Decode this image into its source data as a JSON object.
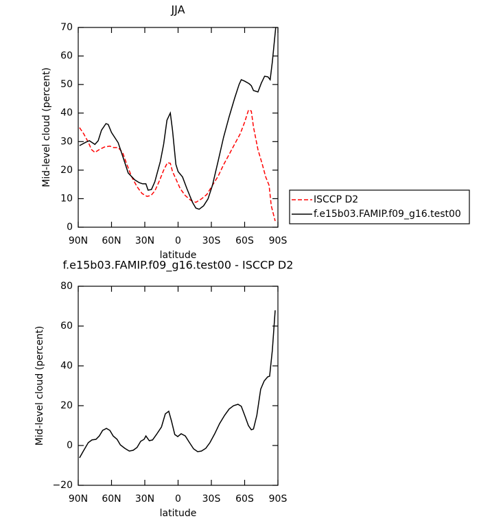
{
  "chart_data": [
    {
      "type": "line",
      "title": "JJA",
      "xlabel": "latitude",
      "ylabel": "Mid-level cloud (percent)",
      "xlim": [
        90,
        -90
      ],
      "ylim": [
        0,
        70
      ],
      "xticks": [
        {
          "value": 90,
          "label": "90N"
        },
        {
          "value": 60,
          "label": "60N"
        },
        {
          "value": 30,
          "label": "30N"
        },
        0,
        {
          "value": -30,
          "label": "30S"
        },
        {
          "value": -60,
          "label": "60S"
        },
        {
          "value": -90,
          "label": "90S"
        }
      ],
      "yticks": [
        0,
        10,
        20,
        30,
        40,
        50,
        60,
        70
      ],
      "legend": "right",
      "series": [
        {
          "name": "ISCCP D2",
          "color": "#ff0000",
          "line_style": "dashed",
          "x": [
            88.8,
            85,
            81,
            78,
            75,
            71,
            66.5,
            61.5,
            58,
            54,
            50,
            47,
            42,
            37,
            32.5,
            28,
            24.5,
            21,
            17,
            13,
            9.6,
            7,
            5,
            1.6,
            -2,
            -6.5,
            -11.5,
            -16,
            -21,
            -26,
            -31,
            -36,
            -41,
            -46,
            -51,
            -56,
            -60,
            -63.5,
            -66,
            -68,
            -72,
            -76,
            -79,
            -82,
            -84,
            -87.5
          ],
          "values": [
            34.9,
            32.7,
            29.8,
            27.2,
            26.2,
            27.2,
            28.1,
            28.4,
            27.9,
            27.9,
            26.2,
            22.9,
            17.8,
            14.2,
            11.8,
            10.8,
            11.1,
            12.7,
            16.1,
            20,
            22.6,
            22.4,
            19.5,
            16.6,
            13.5,
            11.1,
            9.4,
            8.7,
            9.9,
            11.5,
            14.7,
            17.8,
            21.9,
            25.5,
            29.1,
            32.7,
            36.8,
            41.1,
            40.7,
            35.1,
            27.2,
            21.9,
            17.6,
            14.7,
            7.5,
            2.2
          ]
        },
        {
          "name": "f.e15b03.FAMIP.f09_g16.test00",
          "color": "#000000",
          "line_style": "solid",
          "x": [
            88.8,
            83,
            80,
            75,
            72,
            69,
            65,
            63,
            60,
            54,
            49,
            45,
            39,
            35,
            32,
            29,
            27,
            24,
            21,
            16,
            13,
            10,
            7,
            5,
            2,
            0,
            -4,
            -8,
            -13,
            -16,
            -19,
            -23,
            -27,
            -31,
            -36,
            -41,
            -46,
            -51,
            -55,
            -57,
            -60,
            -64,
            -66,
            -68,
            -72,
            -75,
            -78,
            -81,
            -83,
            -85,
            -88
          ],
          "values": [
            28.6,
            29.8,
            30.3,
            29,
            30.3,
            34,
            36.3,
            36,
            33.2,
            29.6,
            23.8,
            19,
            16.6,
            15.6,
            15.2,
            15.2,
            13,
            13.2,
            15.9,
            23,
            29.1,
            37.5,
            40,
            34,
            22,
            19.5,
            17.6,
            13.5,
            8.7,
            6.7,
            6.3,
            7.5,
            9.9,
            14.7,
            23,
            31.5,
            38.7,
            45.2,
            50,
            51.7,
            51.2,
            50.3,
            49.6,
            47.9,
            47.4,
            50.5,
            52.9,
            52.7,
            51.7,
            58,
            70
          ]
        }
      ]
    },
    {
      "type": "line",
      "title": "f.e15b03.FAMIP.f09_g16.test00 - ISCCP D2",
      "xlabel": "latitude",
      "ylabel": "Mid-level cloud (percent)",
      "xlim": [
        90,
        -90
      ],
      "ylim": [
        -20,
        80
      ],
      "xticks": [
        {
          "value": 90,
          "label": "90N"
        },
        {
          "value": 60,
          "label": "60N"
        },
        {
          "value": 30,
          "label": "30N"
        },
        0,
        {
          "value": -30,
          "label": "30S"
        },
        {
          "value": -60,
          "label": "60S"
        },
        {
          "value": -90,
          "label": "90S"
        }
      ],
      "yticks": [
        {
          "value": -20,
          "label": "−20"
        },
        0,
        20,
        40,
        60,
        80
      ],
      "series": [
        {
          "color": "#000000",
          "line_style": "solid",
          "x": [
            88.8,
            85,
            81,
            77.6,
            74,
            71,
            68,
            64.6,
            61.5,
            58.5,
            55,
            52,
            48,
            44,
            40.5,
            37,
            33.7,
            30.6,
            29,
            26,
            23,
            19.5,
            15,
            11.5,
            8.4,
            6,
            3,
            0.3,
            -2.8,
            -6.5,
            -10,
            -14,
            -17.6,
            -21,
            -25,
            -28.7,
            -33,
            -37.4,
            -42,
            -46,
            -50,
            -54,
            -57,
            -60,
            -63.4,
            -66,
            -68,
            -71,
            -74.5,
            -77.6,
            -80.7,
            -82.5,
            -85,
            -87.5
          ],
          "values": [
            -6.2,
            -2.4,
            1.4,
            2.8,
            3.1,
            4.8,
            7.6,
            8.6,
            7.6,
            4.8,
            3.1,
            0.3,
            -1.4,
            -2.8,
            -2.4,
            -1,
            2.1,
            3.1,
            4.8,
            2.4,
            2.8,
            5.5,
            9.3,
            15.9,
            17.2,
            12.4,
            5.5,
            4.5,
            5.9,
            4.8,
            1.7,
            -1.7,
            -3.1,
            -2.8,
            -1.4,
            1.4,
            5.9,
            11,
            15.2,
            18.3,
            20,
            20.7,
            19.7,
            15.2,
            10,
            7.9,
            8.3,
            15.2,
            28.3,
            32.4,
            34.5,
            34.8,
            47.9,
            67.9
          ]
        }
      ]
    }
  ]
}
